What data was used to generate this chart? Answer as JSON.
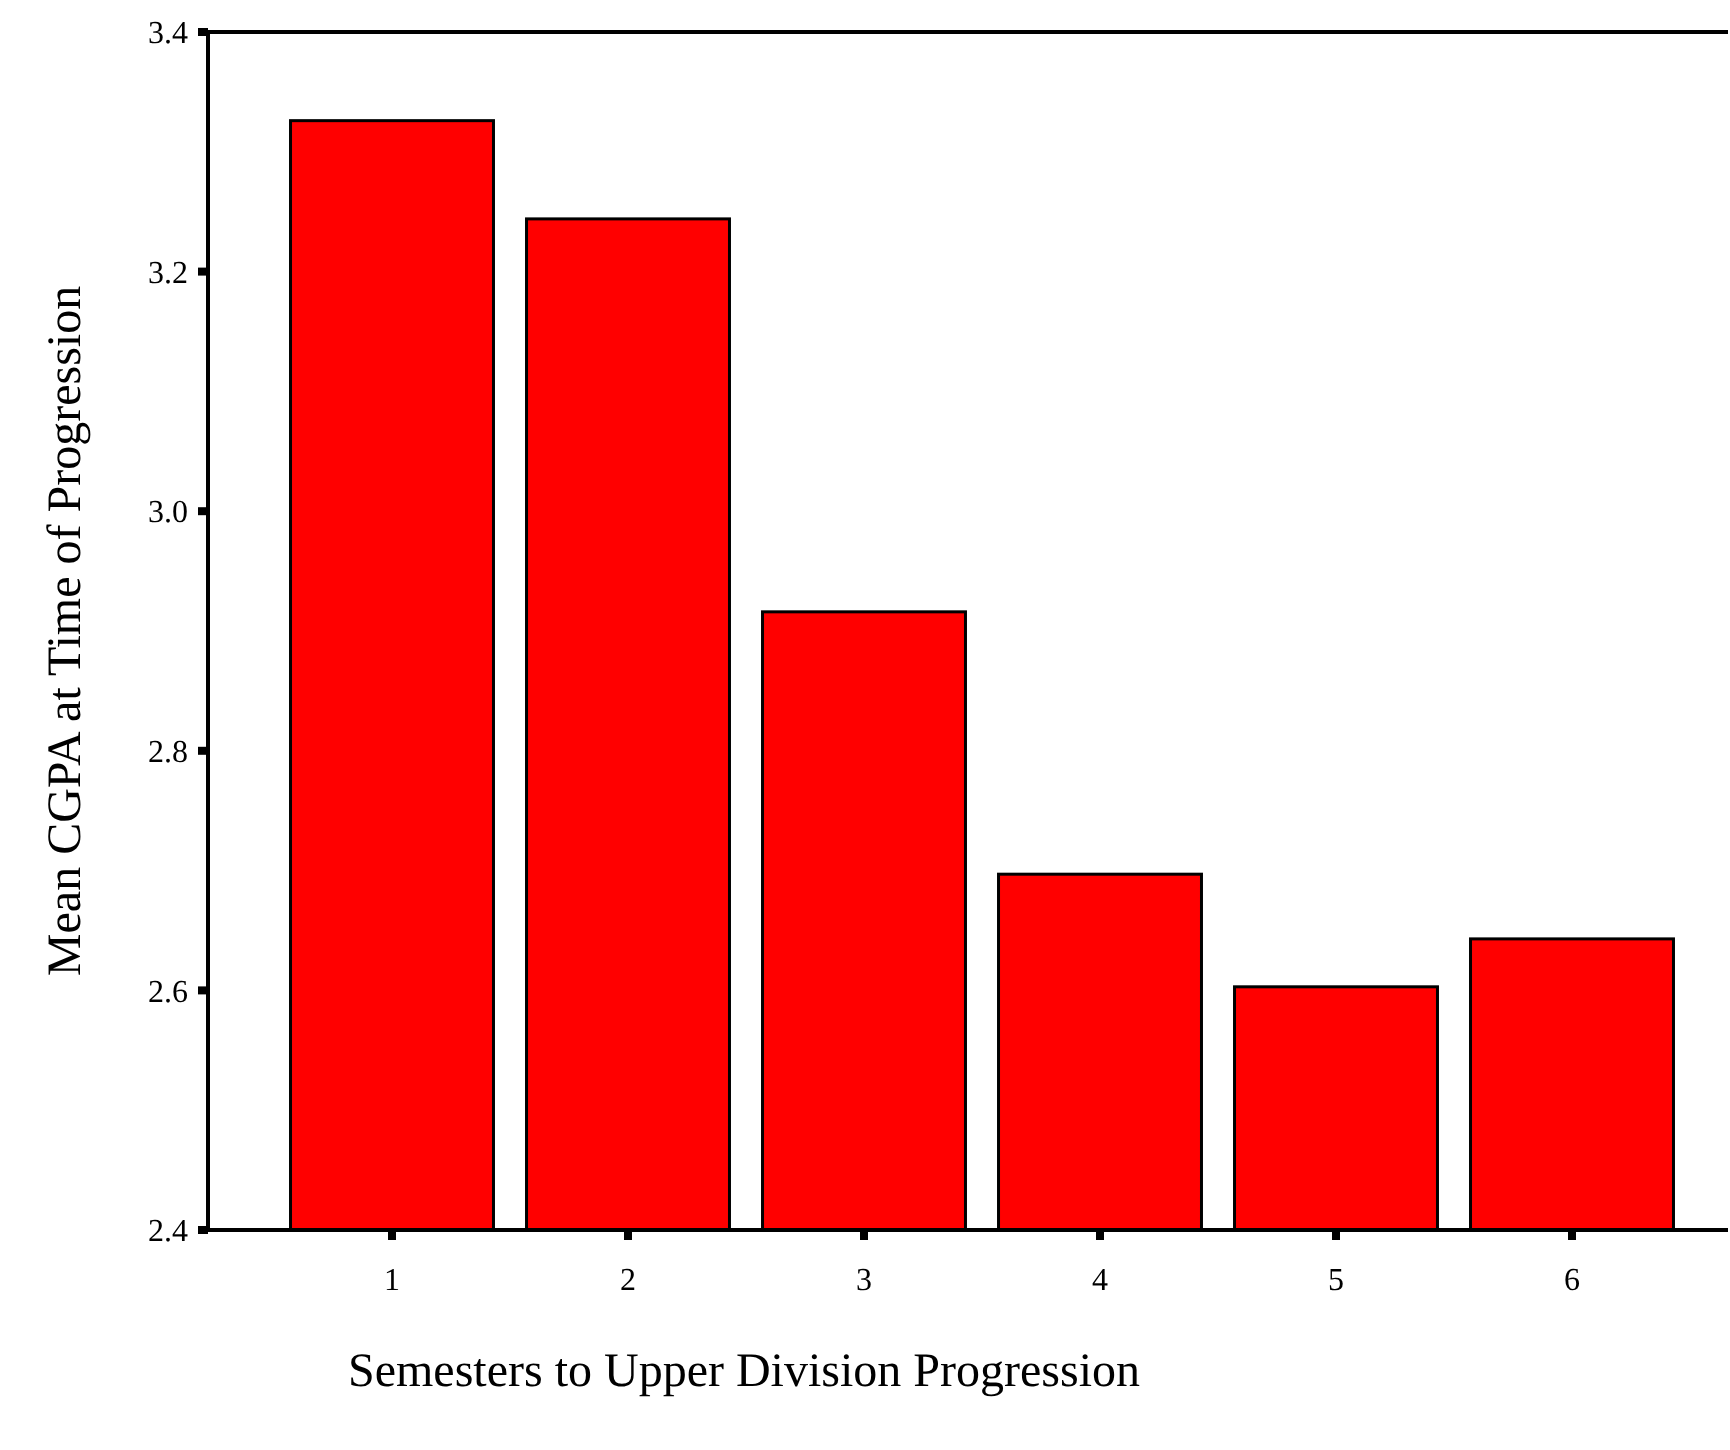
{
  "chart_data": {
    "type": "bar",
    "xlabel": "Semesters to Upper Division Progression",
    "ylabel": "Mean CGPA at Time of Progression",
    "categories": [
      "1",
      "2",
      "3",
      "4",
      "5",
      "6"
    ],
    "values": [
      3.326,
      3.244,
      2.916,
      2.697,
      2.603,
      2.643
    ],
    "color": "#ff0000",
    "ylim": [
      2.4,
      3.4
    ],
    "yticks": [
      2.4,
      2.6,
      2.8,
      {
        "value": 3,
        "label": "3.0"
      },
      3.2,
      3.4
    ],
    "grid": false
  }
}
